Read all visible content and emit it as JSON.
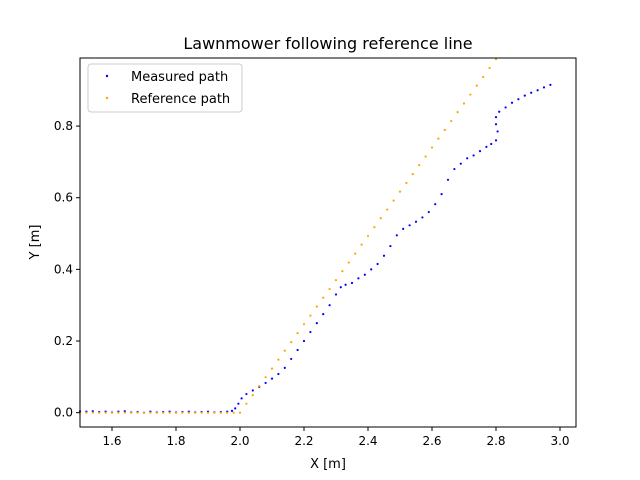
{
  "chart_data": {
    "type": "scatter",
    "title": "Lawnmower following reference line",
    "xlabel": "X [m]",
    "ylabel": "Y [m]",
    "xlim": [
      1.5,
      3.05
    ],
    "ylim": [
      -0.04,
      0.99
    ],
    "x_ticks": [
      1.6,
      1.8,
      2.0,
      2.2,
      2.4,
      2.6,
      2.8,
      3.0
    ],
    "x_tick_labels": [
      "1.6",
      "1.8",
      "2.0",
      "2.2",
      "2.4",
      "2.6",
      "2.8",
      "3.0"
    ],
    "y_ticks": [
      0.0,
      0.2,
      0.4,
      0.6,
      0.8
    ],
    "y_tick_labels": [
      "0.0",
      "0.2",
      "0.4",
      "0.6",
      "0.8"
    ],
    "grid": false,
    "legend_position": "top-left",
    "series": [
      {
        "name": "Measured path",
        "color": "#0000ff",
        "points": [
          [
            1.5,
            0.004
          ],
          [
            1.52,
            0.003
          ],
          [
            1.54,
            0.004
          ],
          [
            1.56,
            0.002
          ],
          [
            1.58,
            0.003
          ],
          [
            1.6,
            0.001
          ],
          [
            1.62,
            0.003
          ],
          [
            1.64,
            0.004
          ],
          [
            1.66,
            0.001
          ],
          [
            1.68,
            0.002
          ],
          [
            1.7,
            0.0
          ],
          [
            1.72,
            0.003
          ],
          [
            1.74,
            0.001
          ],
          [
            1.76,
            0.002
          ],
          [
            1.78,
            0.003
          ],
          [
            1.8,
            0.001
          ],
          [
            1.82,
            0.002
          ],
          [
            1.84,
            0.003
          ],
          [
            1.86,
            0.001
          ],
          [
            1.88,
            0.002
          ],
          [
            1.9,
            0.003
          ],
          [
            1.92,
            0.001
          ],
          [
            1.94,
            0.002
          ],
          [
            1.96,
            0.003
          ],
          [
            1.975,
            0.005
          ],
          [
            1.985,
            0.012
          ],
          [
            1.995,
            0.025
          ],
          [
            2.005,
            0.04
          ],
          [
            2.02,
            0.052
          ],
          [
            2.04,
            0.062
          ],
          [
            2.06,
            0.072
          ],
          [
            2.08,
            0.083
          ],
          [
            2.1,
            0.095
          ],
          [
            2.12,
            0.108
          ],
          [
            2.14,
            0.125
          ],
          [
            2.16,
            0.15
          ],
          [
            2.18,
            0.175
          ],
          [
            2.2,
            0.2
          ],
          [
            2.22,
            0.225
          ],
          [
            2.24,
            0.25
          ],
          [
            2.26,
            0.275
          ],
          [
            2.28,
            0.3
          ],
          [
            2.3,
            0.33
          ],
          [
            2.315,
            0.35
          ],
          [
            2.33,
            0.357
          ],
          [
            2.35,
            0.362
          ],
          [
            2.37,
            0.375
          ],
          [
            2.39,
            0.385
          ],
          [
            2.41,
            0.4
          ],
          [
            2.43,
            0.415
          ],
          [
            2.45,
            0.438
          ],
          [
            2.47,
            0.465
          ],
          [
            2.49,
            0.495
          ],
          [
            2.51,
            0.513
          ],
          [
            2.53,
            0.523
          ],
          [
            2.55,
            0.533
          ],
          [
            2.57,
            0.545
          ],
          [
            2.59,
            0.56
          ],
          [
            2.61,
            0.582
          ],
          [
            2.63,
            0.61
          ],
          [
            2.65,
            0.65
          ],
          [
            2.67,
            0.68
          ],
          [
            2.69,
            0.695
          ],
          [
            2.71,
            0.71
          ],
          [
            2.73,
            0.718
          ],
          [
            2.75,
            0.73
          ],
          [
            2.77,
            0.742
          ],
          [
            2.785,
            0.75
          ],
          [
            2.8,
            0.76
          ],
          [
            2.805,
            0.785
          ],
          [
            2.8,
            0.805
          ],
          [
            2.8,
            0.825
          ],
          [
            2.81,
            0.84
          ],
          [
            2.83,
            0.852
          ],
          [
            2.85,
            0.865
          ],
          [
            2.87,
            0.875
          ],
          [
            2.89,
            0.885
          ],
          [
            2.91,
            0.893
          ],
          [
            2.93,
            0.9
          ],
          [
            2.95,
            0.908
          ],
          [
            2.97,
            0.915
          ]
        ]
      },
      {
        "name": "Reference path",
        "color": "#ffa500",
        "points": [
          [
            1.5,
            0.0
          ],
          [
            1.52,
            0.0
          ],
          [
            1.54,
            0.0
          ],
          [
            1.56,
            0.0
          ],
          [
            1.58,
            0.0
          ],
          [
            1.6,
            0.0
          ],
          [
            1.62,
            0.0
          ],
          [
            1.64,
            0.0
          ],
          [
            1.66,
            0.0
          ],
          [
            1.68,
            0.0
          ],
          [
            1.7,
            0.0
          ],
          [
            1.72,
            0.0
          ],
          [
            1.74,
            0.0
          ],
          [
            1.76,
            0.0
          ],
          [
            1.78,
            0.0
          ],
          [
            1.8,
            0.0
          ],
          [
            1.82,
            0.0
          ],
          [
            1.84,
            0.0
          ],
          [
            1.86,
            0.0
          ],
          [
            1.88,
            0.0
          ],
          [
            1.9,
            0.0
          ],
          [
            1.92,
            0.0
          ],
          [
            1.94,
            0.0
          ],
          [
            1.96,
            0.0
          ],
          [
            1.98,
            0.0
          ],
          [
            2.0,
            0.0
          ],
          [
            2.02,
            0.025
          ],
          [
            2.04,
            0.049
          ],
          [
            2.06,
            0.074
          ],
          [
            2.08,
            0.099
          ],
          [
            2.1,
            0.123
          ],
          [
            2.12,
            0.148
          ],
          [
            2.14,
            0.173
          ],
          [
            2.16,
            0.197
          ],
          [
            2.18,
            0.222
          ],
          [
            2.2,
            0.247
          ],
          [
            2.22,
            0.271
          ],
          [
            2.24,
            0.296
          ],
          [
            2.26,
            0.321
          ],
          [
            2.28,
            0.345
          ],
          [
            2.3,
            0.37
          ],
          [
            2.32,
            0.395
          ],
          [
            2.34,
            0.419
          ],
          [
            2.36,
            0.444
          ],
          [
            2.38,
            0.469
          ],
          [
            2.4,
            0.493
          ],
          [
            2.42,
            0.518
          ],
          [
            2.44,
            0.543
          ],
          [
            2.46,
            0.567
          ],
          [
            2.48,
            0.592
          ],
          [
            2.5,
            0.617
          ],
          [
            2.52,
            0.641
          ],
          [
            2.54,
            0.666
          ],
          [
            2.56,
            0.691
          ],
          [
            2.58,
            0.715
          ],
          [
            2.6,
            0.74
          ],
          [
            2.62,
            0.765
          ],
          [
            2.64,
            0.789
          ],
          [
            2.66,
            0.814
          ],
          [
            2.68,
            0.839
          ],
          [
            2.7,
            0.863
          ],
          [
            2.72,
            0.888
          ],
          [
            2.74,
            0.913
          ],
          [
            2.76,
            0.937
          ],
          [
            2.78,
            0.962
          ],
          [
            2.8,
            0.987
          ]
        ]
      }
    ]
  }
}
